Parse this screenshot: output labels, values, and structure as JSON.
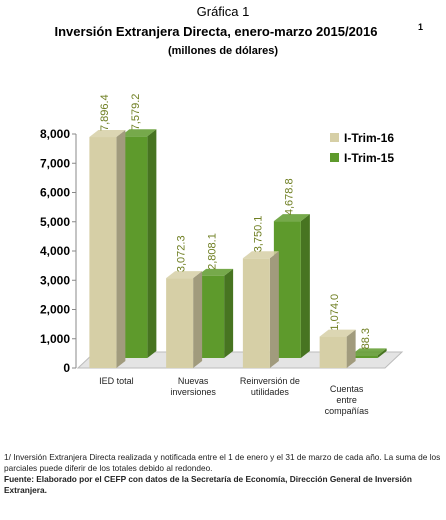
{
  "chart_data": {
    "type": "bar3d",
    "heading": "Gráfica 1",
    "title": "Inversión Extranjera Directa, enero-marzo 2015/2016",
    "title_note": "1",
    "subtitle": "(millones de dólares)",
    "categories": [
      "IED total",
      "Nuevas inversiones",
      "Reinversión de utilidades",
      "Cuentas entre compañías"
    ],
    "series": [
      {
        "name": "I-Trim-16",
        "color": "#d6cfa6",
        "values": [
          7896.4,
          3072.3,
          3750.1,
          1074.0
        ],
        "value_labels": [
          "7,896.4",
          "3,072.3",
          "3,750.1",
          "1,074.0"
        ]
      },
      {
        "name": "I-Trim-15",
        "color": "#5e9a2c",
        "values": [
          7579.2,
          2808.1,
          4678.8,
          88.3
        ],
        "value_labels": [
          "7,579.2",
          "2,808.1",
          "4,678.8",
          "88.3"
        ]
      }
    ],
    "ylim": [
      0,
      8000
    ],
    "yticks": [
      {
        "value": 0,
        "label": "0"
      },
      {
        "value": 1000,
        "label": "1,000"
      },
      {
        "value": 2000,
        "label": "2,000"
      },
      {
        "value": 3000,
        "label": "3,000"
      },
      {
        "value": 4000,
        "label": "4,000"
      },
      {
        "value": 5000,
        "label": "5,000"
      },
      {
        "value": 6000,
        "label": "6,000"
      },
      {
        "value": 7000,
        "label": "7,000"
      },
      {
        "value": 8000,
        "label": "8,000"
      }
    ],
    "legend": "top-right",
    "notes": [
      "1/ Inversión Extranjera Directa realizada y notificada entre el 1 de enero y el 31 de marzo de cada año. La suma de los parciales puede diferir de los totales debido al redondeo.",
      "Fuente: Elaborado por el CEFP con datos de la Secretaría de Economía, Dirección General de Inversión Extranjera."
    ]
  }
}
